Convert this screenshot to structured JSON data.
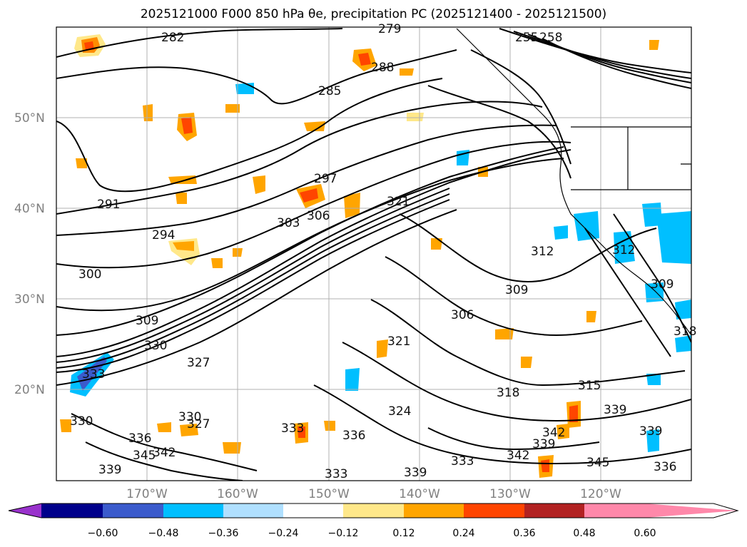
{
  "title": "2025121000 F000 850 hPa θe, precipitation PC (2025121400 - 2025121500)",
  "lat_labels": [
    "50°N",
    "40°N",
    "30°N",
    "20°N"
  ],
  "lon_labels": [
    "170°W",
    "160°W",
    "150°W",
    "140°W",
    "130°W",
    "120°W"
  ],
  "contour_labels": [
    "282",
    "279",
    "285",
    "288",
    "255",
    "258",
    "291",
    "294",
    "297",
    "300",
    "303",
    "306",
    "309",
    "312",
    "309",
    "306",
    "321",
    "321",
    "318",
    "315",
    "324",
    "327",
    "330",
    "333",
    "330",
    "327",
    "333",
    "336",
    "339",
    "342",
    "345",
    "342",
    "339",
    "336",
    "333",
    "330",
    "339",
    "345",
    "339",
    "342",
    "333",
    "339",
    "336",
    "312",
    "309",
    "318"
  ],
  "colorbar": {
    "ticks": [
      "−0.60",
      "−0.48",
      "−0.36",
      "−0.24",
      "−0.12",
      "0.12",
      "0.24",
      "0.36",
      "0.48",
      "0.60"
    ],
    "colors": [
      "#9932cc",
      "#00008b",
      "#3b5bcc",
      "#00bfff",
      "#b0e0ff",
      "#ffffff",
      "#ffe88a",
      "#ffa500",
      "#ff4500",
      "#b22222",
      "#ff88aa"
    ]
  },
  "map": {
    "projection": "plate-carree",
    "lon_range": [
      -180,
      -110
    ],
    "lat_range": [
      10,
      60
    ],
    "contour_field": "850 hPa theta-e (K)",
    "shading_field": "precipitation PC"
  }
}
